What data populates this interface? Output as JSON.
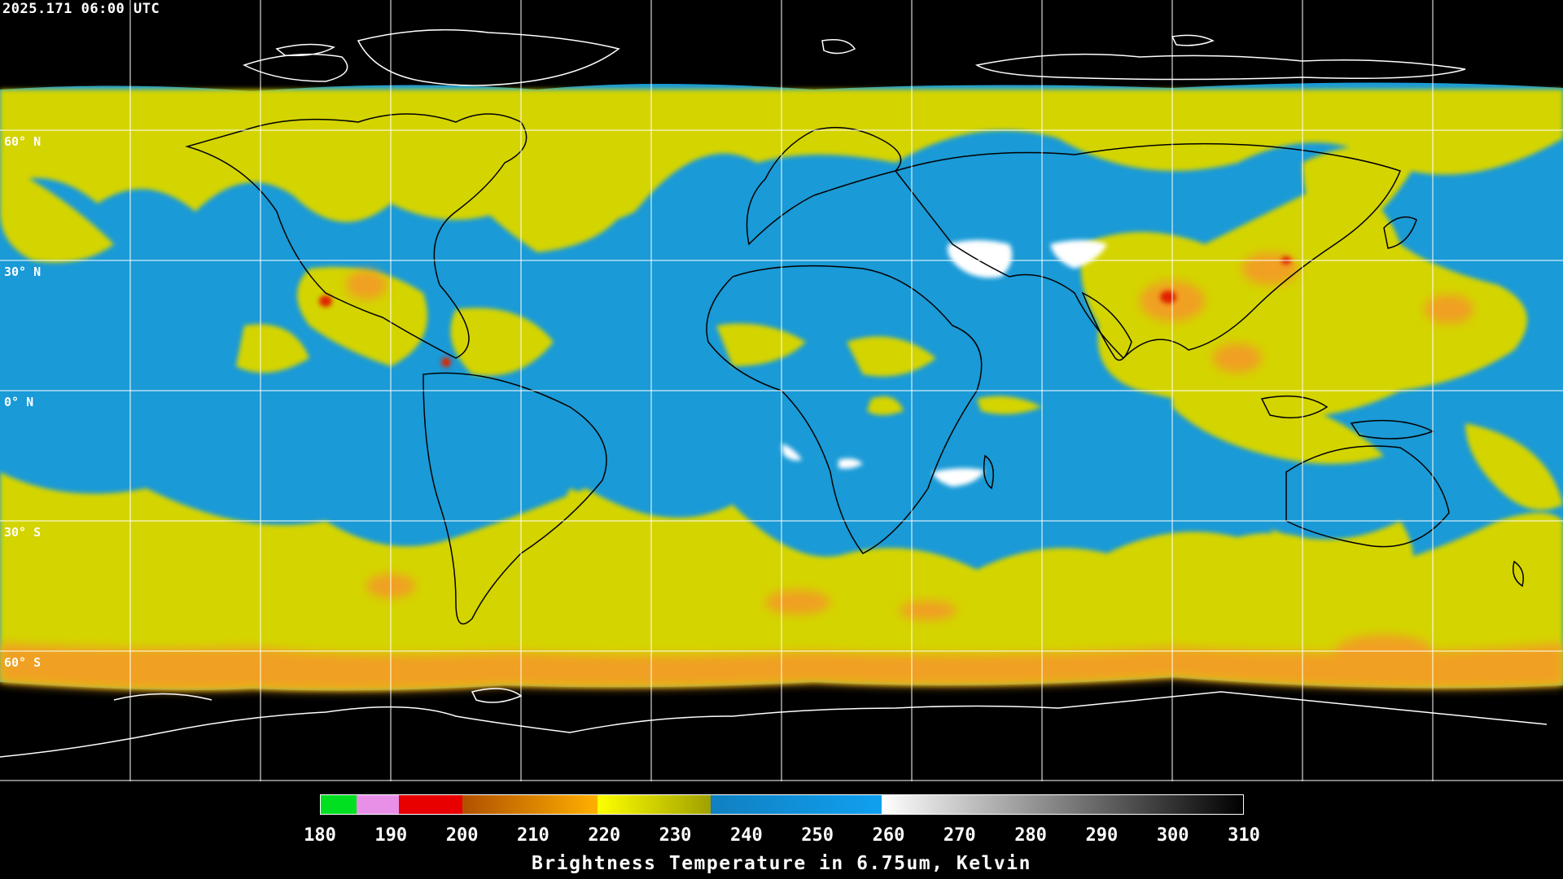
{
  "timestamp": "2025.171 06:00 UTC",
  "lat_labels": [
    "60° N",
    "30° N",
    "0° N",
    "30° S",
    "60° S"
  ],
  "colorbar": {
    "title": "Brightness Temperature in 6.75um, Kelvin",
    "ticks": [
      "180",
      "190",
      "200",
      "210",
      "220",
      "230",
      "240",
      "250",
      "260",
      "270",
      "280",
      "290",
      "300",
      "310"
    ],
    "range": [
      180,
      310
    ],
    "segments": [
      {
        "from": 180,
        "to": 185,
        "color": "#00e020"
      },
      {
        "from": 185,
        "to": 191,
        "color": "#e890e8"
      },
      {
        "from": 191,
        "to": 200,
        "color": "#e80000"
      },
      {
        "from": 200,
        "to": 219,
        "color": "gradient-orange",
        "c1": "#b05000",
        "c2": "#ffb000"
      },
      {
        "from": 219,
        "to": 235,
        "color": "gradient-yellow",
        "c1": "#ffff00",
        "c2": "#a0a000"
      },
      {
        "from": 235,
        "to": 259,
        "color": "gradient-blue",
        "c1": "#1080c0",
        "c2": "#10a0f0"
      },
      {
        "from": 259,
        "to": 310,
        "color": "gradient-gray",
        "c1": "#ffffff",
        "c2": "#000000"
      }
    ]
  },
  "map": {
    "projection": "equirectangular global",
    "background_color": "#000000",
    "grid_color": "#ffffff",
    "coastline_color_on_data": "#000000",
    "coastline_color_on_black": "#ffffff",
    "dry_color": "#1a9ad6",
    "moist_color": "#d8d800",
    "cold_color": "#f0a020",
    "deep_convection_color": "#e02000"
  }
}
